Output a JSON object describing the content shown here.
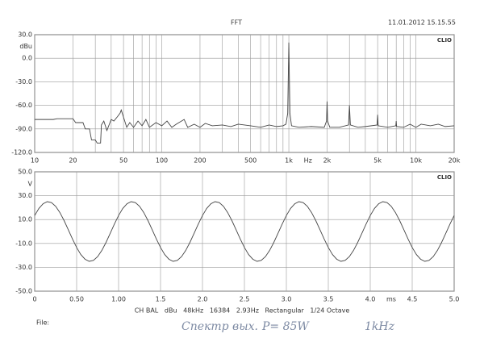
{
  "header": {
    "title": "FFT",
    "timestamp": "11.01.2012 15.15.55"
  },
  "chart_data": [
    {
      "type": "line",
      "x_scale": "log",
      "logo": "CLIO",
      "x_unit": "Hz",
      "y_unit": "dBu",
      "grid": true,
      "color": "#444444",
      "xlim": [
        10,
        20000
      ],
      "ylim": [
        -120,
        30
      ],
      "xticks": [
        10,
        20,
        50,
        100,
        200,
        500,
        {
          "value": 1000,
          "label": "1k"
        },
        {
          "value": 2000,
          "label": "2k"
        },
        {
          "value": 5000,
          "label": "5k"
        },
        {
          "value": 10000,
          "label": "10k"
        },
        {
          "value": 20000,
          "label": "20k"
        }
      ],
      "minor_xticks": [
        30,
        40,
        60,
        70,
        80,
        90,
        300,
        400,
        600,
        700,
        800,
        900,
        3000,
        4000,
        6000,
        7000,
        8000,
        9000
      ],
      "yticks": [
        {
          "value": 30,
          "label": "30.0"
        },
        {
          "value": 0,
          "label": "0.0"
        },
        {
          "value": -30,
          "label": "-30.0"
        },
        {
          "value": -60,
          "label": "-60.0"
        },
        {
          "value": -90,
          "label": "-90.0"
        },
        {
          "value": -120,
          "label": "-120.0"
        }
      ],
      "x": [
        10,
        12,
        14,
        15,
        18,
        20,
        21,
        24,
        25,
        27,
        28,
        30,
        31,
        33,
        33.5,
        35,
        37,
        40,
        42,
        45,
        47,
        48,
        50,
        53,
        56,
        60,
        65,
        70,
        75,
        80,
        90,
        100,
        110,
        120,
        130,
        150,
        160,
        180,
        200,
        220,
        250,
        300,
        350,
        400,
        500,
        600,
        700,
        800,
        900,
        950,
        980,
        1000,
        1020,
        1050,
        1200,
        1500,
        1900,
        1980,
        2000,
        2020,
        2100,
        2500,
        2950,
        3000,
        3050,
        3500,
        4000,
        4950,
        5000,
        5050,
        6000,
        6950,
        7000,
        7050,
        8000,
        9000,
        10000,
        11000,
        13000,
        15000,
        17000,
        20000
      ],
      "values": [
        -78,
        -78,
        -78,
        -77,
        -77,
        -77,
        -82,
        -82,
        -90,
        -90,
        -104,
        -104,
        -108,
        -108,
        -85,
        -80,
        -92,
        -78,
        -80,
        -74,
        -70,
        -66,
        -75,
        -88,
        -82,
        -88,
        -80,
        -86,
        -78,
        -88,
        -82,
        -86,
        -80,
        -88,
        -84,
        -78,
        -88,
        -84,
        -88,
        -83,
        -86,
        -85,
        -87,
        -84,
        -86,
        -88,
        -85,
        -87,
        -86,
        -84,
        -70,
        20,
        -70,
        -86,
        -88,
        -87,
        -88,
        -80,
        -55,
        -80,
        -88,
        -88,
        -85,
        -60,
        -85,
        -88,
        -87,
        -85,
        -72,
        -86,
        -88,
        -86,
        -80,
        -87,
        -88,
        -84,
        -88,
        -84,
        -86,
        -84,
        -87,
        -86
      ]
    },
    {
      "type": "line",
      "logo": "CLIO",
      "x_unit": "ms",
      "y_unit": "V",
      "grid": true,
      "color": "#444444",
      "xlim": [
        0,
        5
      ],
      "ylim": [
        -50,
        50
      ],
      "xticks": [
        0,
        {
          "value": 0.5,
          "label": "0.50"
        },
        {
          "value": 1,
          "label": "1.00"
        },
        1.5,
        {
          "value": 2,
          "label": "2.0"
        },
        2.5,
        {
          "value": 3,
          "label": "3.0"
        },
        3.5,
        {
          "value": 4,
          "label": "4.0"
        },
        4.5,
        {
          "value": 5,
          "label": "5.0"
        }
      ],
      "yticks": [
        {
          "value": 50,
          "label": "50.0"
        },
        {
          "value": 30,
          "label": "30.0"
        },
        {
          "value": 10,
          "label": "10.0"
        },
        {
          "value": -10,
          "label": "-10.0"
        },
        {
          "value": -30,
          "label": "-30.0"
        },
        {
          "value": -50,
          "label": "-50.0"
        }
      ],
      "x": [
        0,
        0.05,
        0.1,
        0.15,
        0.2,
        0.25,
        0.3,
        0.35,
        0.4,
        0.45,
        0.5,
        0.55,
        0.6,
        0.65,
        0.7,
        0.75,
        0.8,
        0.85,
        0.9,
        0.95,
        1,
        1.05,
        1.1,
        1.15,
        1.2,
        1.25,
        1.3,
        1.35,
        1.4,
        1.45,
        1.5,
        1.55,
        1.6,
        1.65,
        1.7,
        1.75,
        1.8,
        1.85,
        1.9,
        1.95,
        2,
        2.05,
        2.1,
        2.15,
        2.2,
        2.25,
        2.3,
        2.35,
        2.4,
        2.45,
        2.5,
        2.55,
        2.6,
        2.65,
        2.7,
        2.75,
        2.8,
        2.85,
        2.9,
        2.95,
        3,
        3.05,
        3.1,
        3.15,
        3.2,
        3.25,
        3.3,
        3.35,
        3.4,
        3.45,
        3.5,
        3.55,
        3.6,
        3.65,
        3.7,
        3.75,
        3.8,
        3.85,
        3.9,
        3.95,
        4,
        4.05,
        4.1,
        4.15,
        4.2,
        4.25,
        4.3,
        4.35,
        4.4,
        4.45,
        4.5,
        4.55,
        4.6,
        4.65,
        4.7,
        4.75,
        4.8,
        4.85,
        4.9,
        4.95,
        5
      ],
      "values": [
        13.4,
        19.3,
        23.2,
        25.0,
        24.2,
        21.1,
        15.9,
        9.2,
        1.6,
        -6.2,
        -13.4,
        -19.3,
        -23.2,
        -25.0,
        -24.2,
        -21.1,
        -15.9,
        -9.2,
        -1.6,
        6.2,
        13.4,
        19.3,
        23.2,
        25.0,
        24.2,
        21.1,
        15.9,
        9.2,
        1.6,
        -6.2,
        -13.4,
        -19.3,
        -23.2,
        -25.0,
        -24.2,
        -21.1,
        -15.9,
        -9.2,
        -1.6,
        6.2,
        13.4,
        19.3,
        23.2,
        25.0,
        24.2,
        21.1,
        15.9,
        9.2,
        1.6,
        -6.2,
        -13.4,
        -19.3,
        -23.2,
        -25.0,
        -24.2,
        -21.1,
        -15.9,
        -9.2,
        -1.6,
        6.2,
        13.4,
        19.3,
        23.2,
        25.0,
        24.2,
        21.1,
        15.9,
        9.2,
        1.6,
        -6.2,
        -13.4,
        -19.3,
        -23.2,
        -25.0,
        -24.2,
        -21.1,
        -15.9,
        -9.2,
        -1.6,
        6.2,
        13.4,
        19.3,
        23.2,
        25.0,
        24.2,
        21.1,
        15.9,
        9.2,
        1.6,
        -6.2,
        -13.4,
        -19.3,
        -23.2,
        -25.0,
        -24.2,
        -21.1,
        -15.9,
        -9.2,
        -1.6,
        6.2,
        13.4
      ]
    }
  ],
  "footer": {
    "settings": "CH BAL   dBu   48kHz   16384   2.93Hz   Rectangular   1/24 Octave",
    "file_label": "File:"
  },
  "handwritten": [
    "Спектр вых.",
    "P= 85W",
    "1kHz"
  ]
}
